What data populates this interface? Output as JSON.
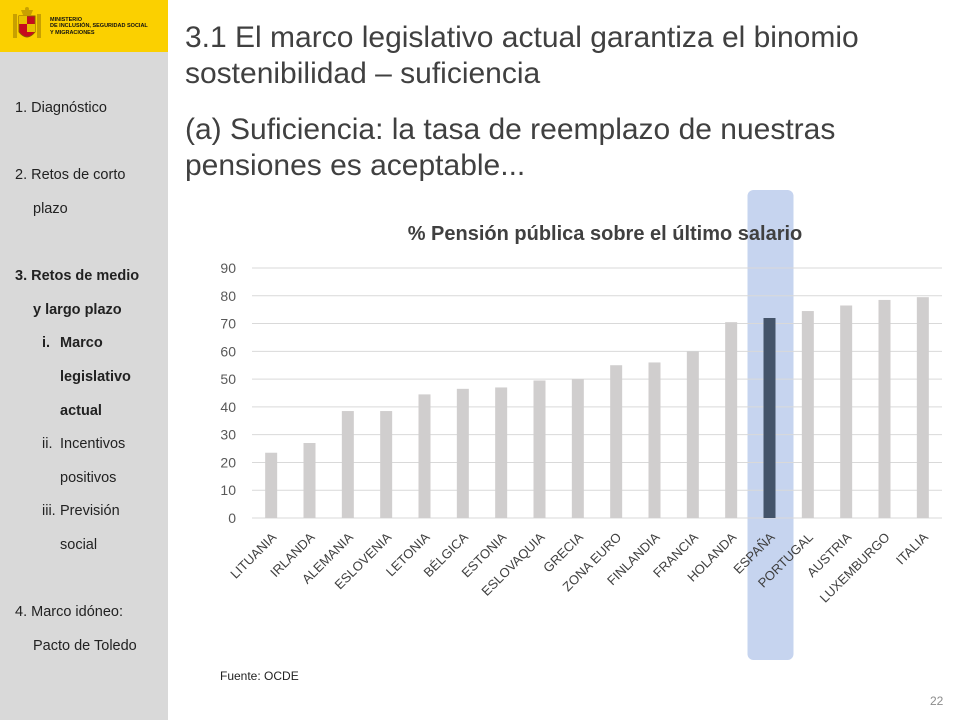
{
  "header": {
    "ministry_lines": [
      "MINISTERIO",
      "DE INCLUSIÓN, SEGURIDAD SOCIAL",
      "Y MIGRACIONES"
    ]
  },
  "sidebar": {
    "items": [
      {
        "label": "1. Diagnóstico",
        "bold": false
      },
      {
        "label": "2. Retos de corto",
        "bold": false
      },
      {
        "label": "plazo",
        "bold": false
      },
      {
        "label": "3. Retos de medio",
        "bold": true
      },
      {
        "label": "y largo plazo",
        "bold": true
      },
      {
        "label": "i.",
        "bold": true
      },
      {
        "label": "Marco",
        "bold": true
      },
      {
        "label": "legislativo",
        "bold": true
      },
      {
        "label": "actual",
        "bold": true
      },
      {
        "label": "ii.",
        "bold": false
      },
      {
        "label": "Incentivos",
        "bold": false
      },
      {
        "label": "positivos",
        "bold": false
      },
      {
        "label": "iii.",
        "bold": false
      },
      {
        "label": "Previsión",
        "bold": false
      },
      {
        "label": "social",
        "bold": false
      },
      {
        "label": "4. Marco idóneo:",
        "bold": false
      },
      {
        "label": "Pacto de Toledo",
        "bold": false
      }
    ]
  },
  "slide": {
    "title_line1": "3.1 El marco legislativo actual garantiza el binomio",
    "title_line2": "sostenibilidad – suficiencia",
    "subtitle_line1": "(a) Suficiencia: la tasa de reemplazo de nuestras",
    "subtitle_line2": "pensiones es aceptable...",
    "source": "Fuente:  OCDE",
    "page_number": "22"
  },
  "chart_data": {
    "type": "bar",
    "title": "% Pensión pública sobre el último salario",
    "categories": [
      "LITUANIA",
      "IRLANDA",
      "ALEMANIA",
      "ESLOVENIA",
      "LETONIA",
      "BÉLGICA",
      "ESTONIA",
      "ESLOVAQUIA",
      "GRECIA",
      "ZONA EURO",
      "FINLANDIA",
      "FRANCIA",
      "HOLANDA",
      "ESPAÑA",
      "PORTUGAL",
      "AUSTRIA",
      "LUXEMBURGO",
      "ITALIA"
    ],
    "values": [
      23.5,
      27,
      38.5,
      38.5,
      44.5,
      46.5,
      47,
      49.5,
      50,
      55,
      56,
      60,
      70.5,
      72,
      74.5,
      76.5,
      78.5,
      79.5
    ],
    "ylim": [
      0,
      90
    ],
    "yticks": [
      0,
      10,
      20,
      30,
      40,
      50,
      60,
      70,
      80,
      90
    ],
    "grid": true,
    "highlight_category": "ESPAÑA",
    "colors": {
      "bar": "#d0cece",
      "highlight_bar": "#44546a",
      "highlight_band": "#c6d4ef",
      "grid": "#d9d9d9"
    }
  }
}
